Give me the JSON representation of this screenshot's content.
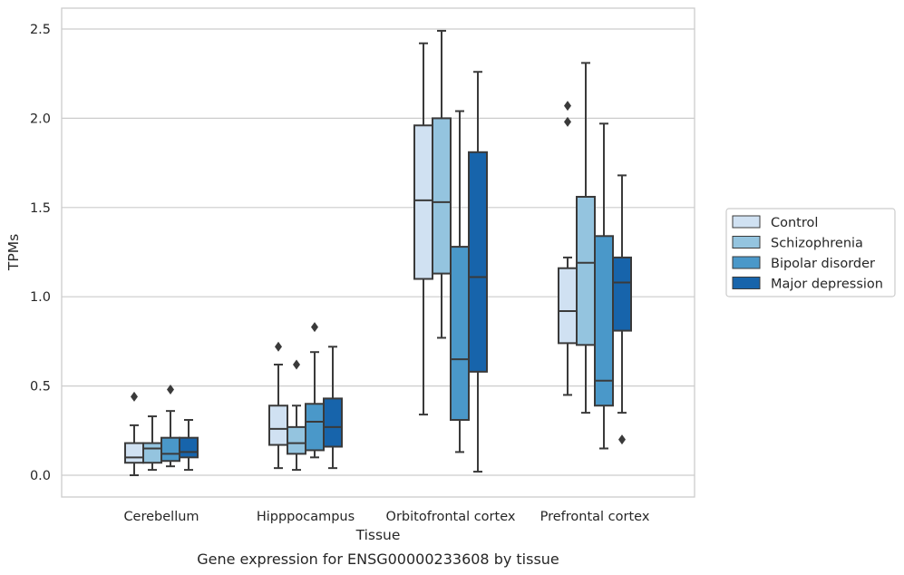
{
  "chart_data": {
    "type": "boxplot",
    "title": "Gene expression for ENSG00000233608 by tissue",
    "xlabel": "Tissue",
    "ylabel": "TPMs",
    "ylim": [
      -0.12,
      2.62
    ],
    "yticks": [
      "0.0",
      "0.5",
      "1.0",
      "1.5",
      "2.0",
      "2.5"
    ],
    "grid": "horizontal",
    "legend_position": "right",
    "categories": [
      "Cerebellum",
      "Hipppocampus",
      "Orbitofrontal cortex",
      "Prefrontal cortex"
    ],
    "series": [
      {
        "name": "Control",
        "color": "#d0e1f2",
        "boxes": [
          {
            "whisker_low": 0.0,
            "q1": 0.07,
            "median": 0.1,
            "q3": 0.18,
            "whisker_high": 0.28,
            "outliers": [
              0.44
            ]
          },
          {
            "whisker_low": 0.04,
            "q1": 0.17,
            "median": 0.26,
            "q3": 0.39,
            "whisker_high": 0.62,
            "outliers": [
              0.72
            ]
          },
          {
            "whisker_low": 0.34,
            "q1": 1.1,
            "median": 1.54,
            "q3": 1.96,
            "whisker_high": 2.42,
            "outliers": []
          },
          {
            "whisker_low": 0.45,
            "q1": 0.74,
            "median": 0.92,
            "q3": 1.16,
            "whisker_high": 1.22,
            "outliers": [
              1.98,
              2.07
            ]
          }
        ]
      },
      {
        "name": "Schizophrenia",
        "color": "#94c4df",
        "boxes": [
          {
            "whisker_low": 0.03,
            "q1": 0.07,
            "median": 0.15,
            "q3": 0.18,
            "whisker_high": 0.33,
            "outliers": []
          },
          {
            "whisker_low": 0.03,
            "q1": 0.12,
            "median": 0.18,
            "q3": 0.27,
            "whisker_high": 0.39,
            "outliers": [
              0.62
            ]
          },
          {
            "whisker_low": 0.77,
            "q1": 1.13,
            "median": 1.53,
            "q3": 2.0,
            "whisker_high": 2.49,
            "outliers": []
          },
          {
            "whisker_low": 0.35,
            "q1": 0.73,
            "median": 1.19,
            "q3": 1.56,
            "whisker_high": 2.31,
            "outliers": []
          }
        ]
      },
      {
        "name": "Bipolar disorder",
        "color": "#4a98c9",
        "boxes": [
          {
            "whisker_low": 0.05,
            "q1": 0.08,
            "median": 0.12,
            "q3": 0.21,
            "whisker_high": 0.36,
            "outliers": [
              0.48
            ]
          },
          {
            "whisker_low": 0.1,
            "q1": 0.14,
            "median": 0.3,
            "q3": 0.4,
            "whisker_high": 0.69,
            "outliers": [
              0.83
            ]
          },
          {
            "whisker_low": 0.13,
            "q1": 0.31,
            "median": 0.65,
            "q3": 1.28,
            "whisker_high": 2.04,
            "outliers": []
          },
          {
            "whisker_low": 0.15,
            "q1": 0.39,
            "median": 0.53,
            "q3": 1.34,
            "whisker_high": 1.97,
            "outliers": []
          }
        ]
      },
      {
        "name": "Major depression",
        "color": "#1764ab",
        "boxes": [
          {
            "whisker_low": 0.03,
            "q1": 0.1,
            "median": 0.13,
            "q3": 0.21,
            "whisker_high": 0.31,
            "outliers": []
          },
          {
            "whisker_low": 0.04,
            "q1": 0.16,
            "median": 0.27,
            "q3": 0.43,
            "whisker_high": 0.72,
            "outliers": []
          },
          {
            "whisker_low": 0.02,
            "q1": 0.58,
            "median": 1.11,
            "q3": 1.81,
            "whisker_high": 2.26,
            "outliers": []
          },
          {
            "whisker_low": 0.35,
            "q1": 0.81,
            "median": 1.08,
            "q3": 1.22,
            "whisker_high": 1.68,
            "outliers": [
              0.2
            ]
          }
        ]
      }
    ]
  }
}
